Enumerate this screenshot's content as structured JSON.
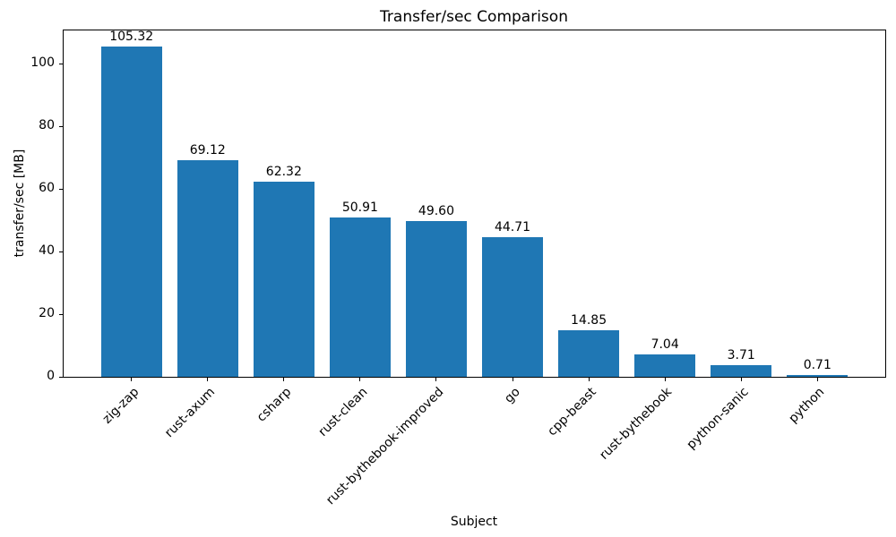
{
  "chart_data": {
    "type": "bar",
    "title": "Transfer/sec Comparison",
    "xlabel": "Subject",
    "ylabel": "transfer/sec [MB]",
    "categories": [
      "zig-zap",
      "rust-axum",
      "csharp",
      "rust-clean",
      "rust-bythebook-improved",
      "go",
      "cpp-beast",
      "rust-bythebook",
      "python-sanic",
      "python"
    ],
    "values": [
      105.32,
      69.12,
      62.32,
      50.91,
      49.6,
      44.71,
      14.85,
      7.04,
      3.71,
      0.71
    ],
    "bar_labels": [
      "105.32",
      "69.12",
      "62.32",
      "50.91",
      "49.60",
      "44.71",
      "14.85",
      "7.04",
      "3.71",
      "0.71"
    ],
    "yticks": [
      0,
      20,
      40,
      60,
      80,
      100
    ],
    "ytick_labels": [
      "0",
      "20",
      "40",
      "60",
      "80",
      "100"
    ],
    "ylim": [
      0,
      110.6
    ],
    "bar_color": "#1f77b4",
    "axis_color": "#000000",
    "background_color": "#ffffff",
    "grid": false,
    "legend_position": "none"
  }
}
